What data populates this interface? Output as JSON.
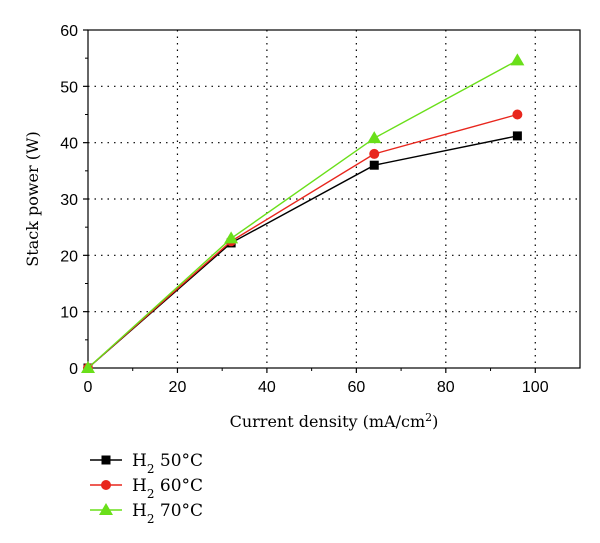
{
  "chart_data": {
    "type": "line",
    "xlabel_main": "Current density (mA/cm",
    "xlabel_sup": "2",
    "xlabel_close": ")",
    "ylabel": "Stack power (W)",
    "xlim": [
      0,
      110
    ],
    "ylim": [
      0,
      60
    ],
    "xticks": [
      "0",
      "20",
      "40",
      "60",
      "80",
      "100"
    ],
    "yticks": [
      "0",
      "10",
      "20",
      "30",
      "40",
      "50",
      "60"
    ],
    "grid": "dotted",
    "legend_position": "bottom-left",
    "series": [
      {
        "name_main": "H",
        "name_sub": "2",
        "name_rest": " 50°C",
        "color": "#000000",
        "marker": "square",
        "x": [
          0,
          32,
          64,
          96
        ],
        "y": [
          0,
          22.2,
          36.0,
          41.2
        ]
      },
      {
        "name_main": "H",
        "name_sub": "2",
        "name_rest": " 60°C",
        "color": "#e8261d",
        "marker": "circle",
        "x": [
          0,
          32,
          64,
          96
        ],
        "y": [
          0,
          22.5,
          38.0,
          45.0
        ]
      },
      {
        "name_main": "H",
        "name_sub": "2",
        "name_rest": " 70°C",
        "color": "#6adf1a",
        "marker": "triangle",
        "x": [
          0,
          32,
          64,
          96
        ],
        "y": [
          0,
          23.0,
          40.8,
          54.6
        ]
      }
    ]
  }
}
